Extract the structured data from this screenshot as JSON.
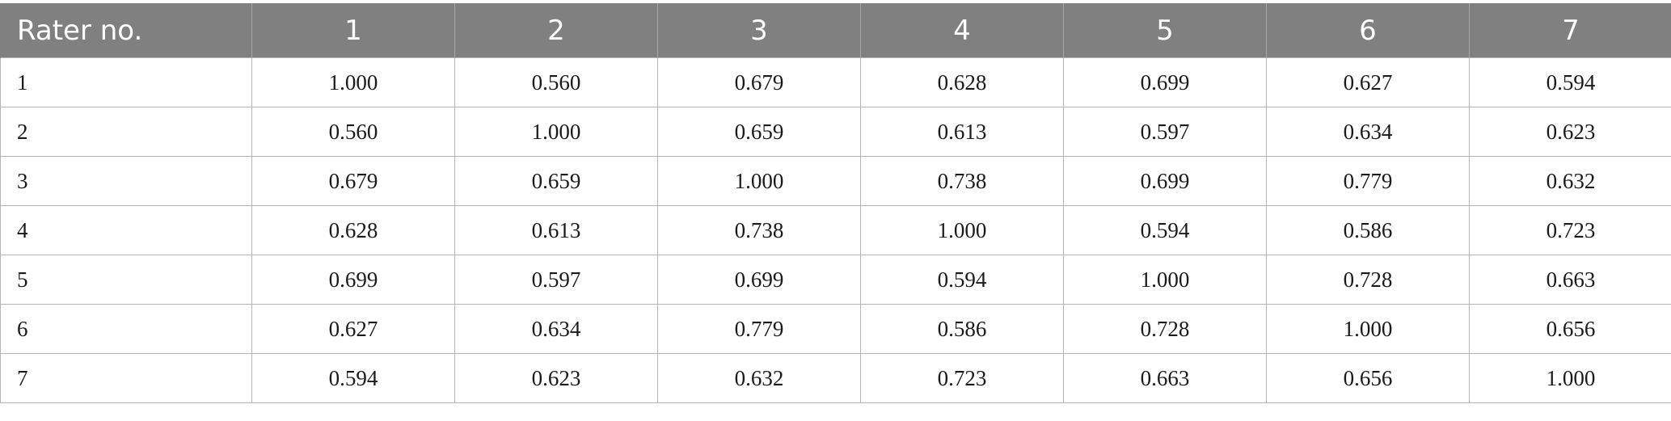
{
  "table": {
    "header": [
      "Rater no.",
      "1",
      "2",
      "3",
      "4",
      "5",
      "6",
      "7"
    ],
    "rows": [
      [
        "1",
        "1.000",
        "0.560",
        "0.679",
        "0.628",
        "0.699",
        "0.627",
        "0.594"
      ],
      [
        "2",
        "0.560",
        "1.000",
        "0.659",
        "0.613",
        "0.597",
        "0.634",
        "0.623"
      ],
      [
        "3",
        "0.679",
        "0.659",
        "1.000",
        "0.738",
        "0.699",
        "0.779",
        "0.632"
      ],
      [
        "4",
        "0.628",
        "0.613",
        "0.738",
        "1.000",
        "0.594",
        "0.586",
        "0.723"
      ],
      [
        "5",
        "0.699",
        "0.597",
        "0.699",
        "0.594",
        "1.000",
        "0.728",
        "0.663"
      ],
      [
        "6",
        "0.627",
        "0.634",
        "0.779",
        "0.586",
        "0.728",
        "1.000",
        "0.656"
      ],
      [
        "7",
        "0.594",
        "0.623",
        "0.632",
        "0.723",
        "0.663",
        "0.656",
        "1.000"
      ]
    ]
  },
  "colors": {
    "header_background": "#808080",
    "header_text": "#ffffff",
    "grid_line": "#b4b4b4"
  }
}
